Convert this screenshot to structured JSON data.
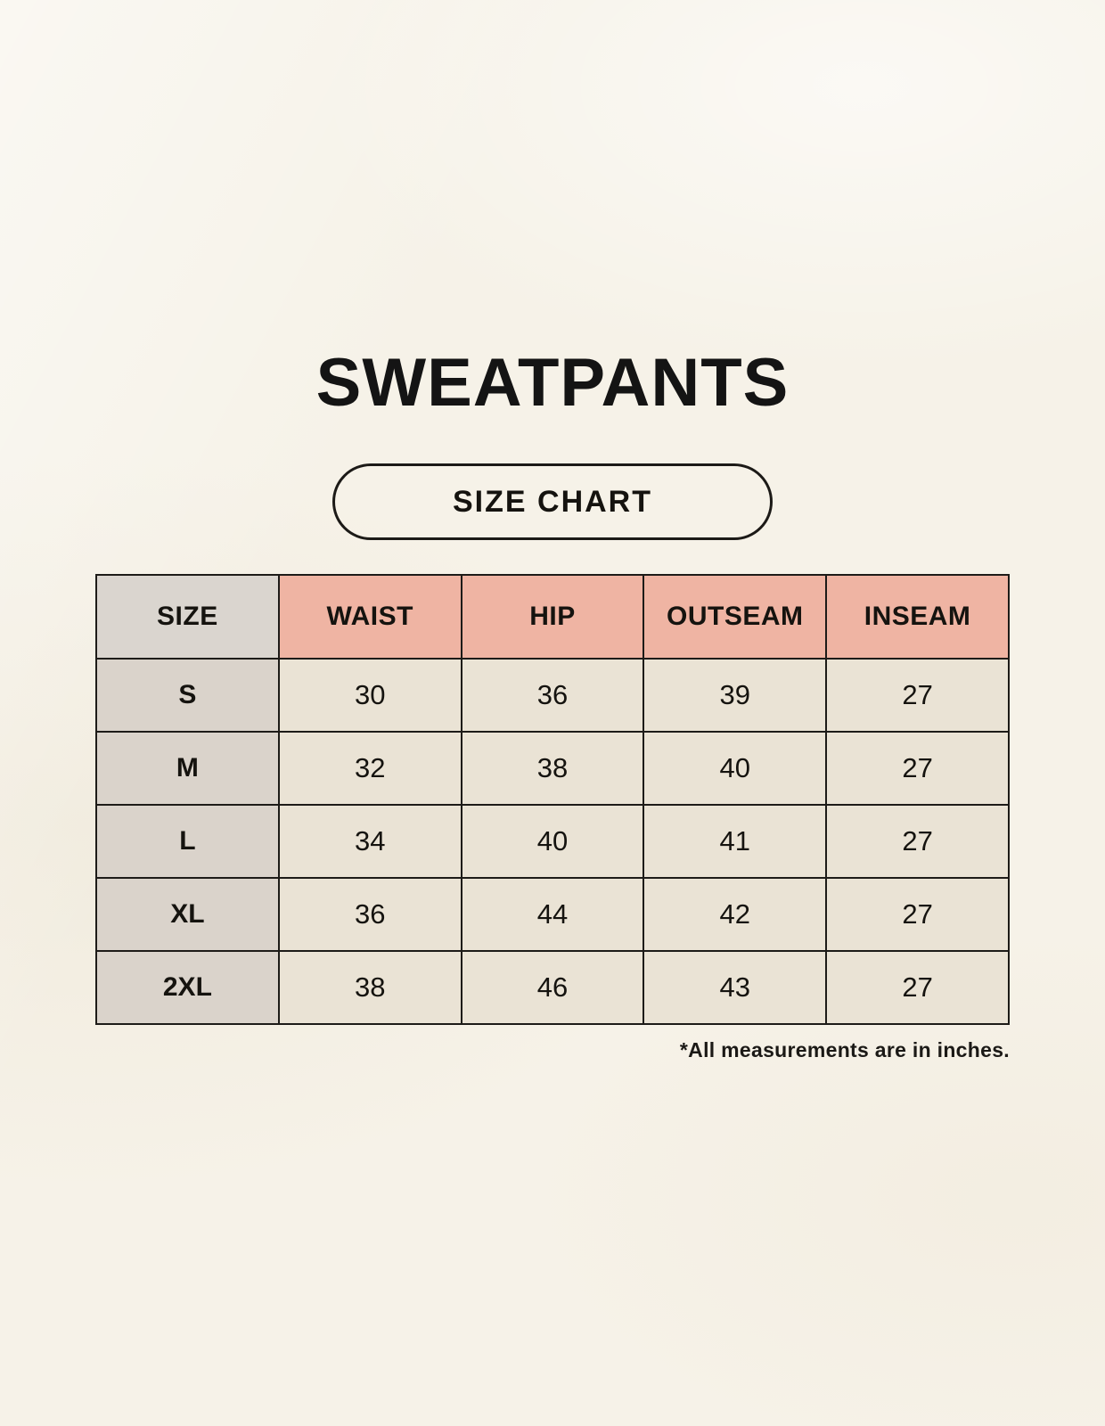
{
  "header": {
    "title": "SWEATPANTS",
    "badge_label": "SIZE CHART"
  },
  "table": {
    "columns": [
      "SIZE",
      "WAIST",
      "HIP",
      "OUTSEAM",
      "INSEAM"
    ],
    "rows": [
      {
        "label": "S",
        "values": [
          "30",
          "36",
          "39",
          "27"
        ]
      },
      {
        "label": "M",
        "values": [
          "32",
          "38",
          "40",
          "27"
        ]
      },
      {
        "label": "L",
        "values": [
          "34",
          "40",
          "41",
          "27"
        ]
      },
      {
        "label": "XL",
        "values": [
          "36",
          "44",
          "42",
          "27"
        ]
      },
      {
        "label": "2XL",
        "values": [
          "38",
          "46",
          "43",
          "27"
        ]
      }
    ],
    "units_note": "*All measurements are in inches."
  },
  "colors": {
    "background": "#f6f2e8",
    "header_pink": "#efb4a3",
    "header_gray": "#dad5cf",
    "label_column_gray": "#dad3cb",
    "cell_beige": "#eae3d5",
    "border": "#1d1b18",
    "text": "#15130f"
  }
}
